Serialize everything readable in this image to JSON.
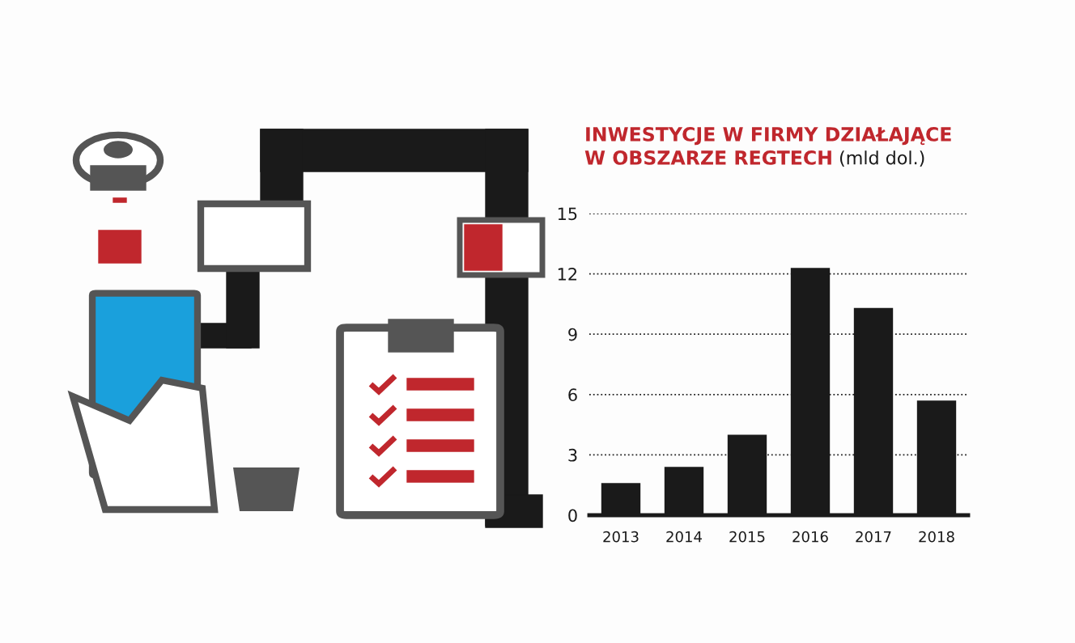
{
  "chart_data": {
    "type": "bar",
    "title": "INWESTYCJE W FIRMY DZIAŁAJĄCE\nW OBSZARZE REGTECH",
    "subtitle": "(mld dol.)",
    "categories": [
      "2013",
      "2014",
      "2015",
      "2016",
      "2017",
      "2018"
    ],
    "values": [
      1.6,
      2.4,
      4.0,
      12.3,
      10.3,
      5.7
    ],
    "color": "#1a1a1a",
    "ylim": [
      0,
      15
    ],
    "yticks": [
      0,
      3,
      6,
      9,
      12,
      15
    ],
    "grid": "y",
    "line_style": "dotted"
  }
}
